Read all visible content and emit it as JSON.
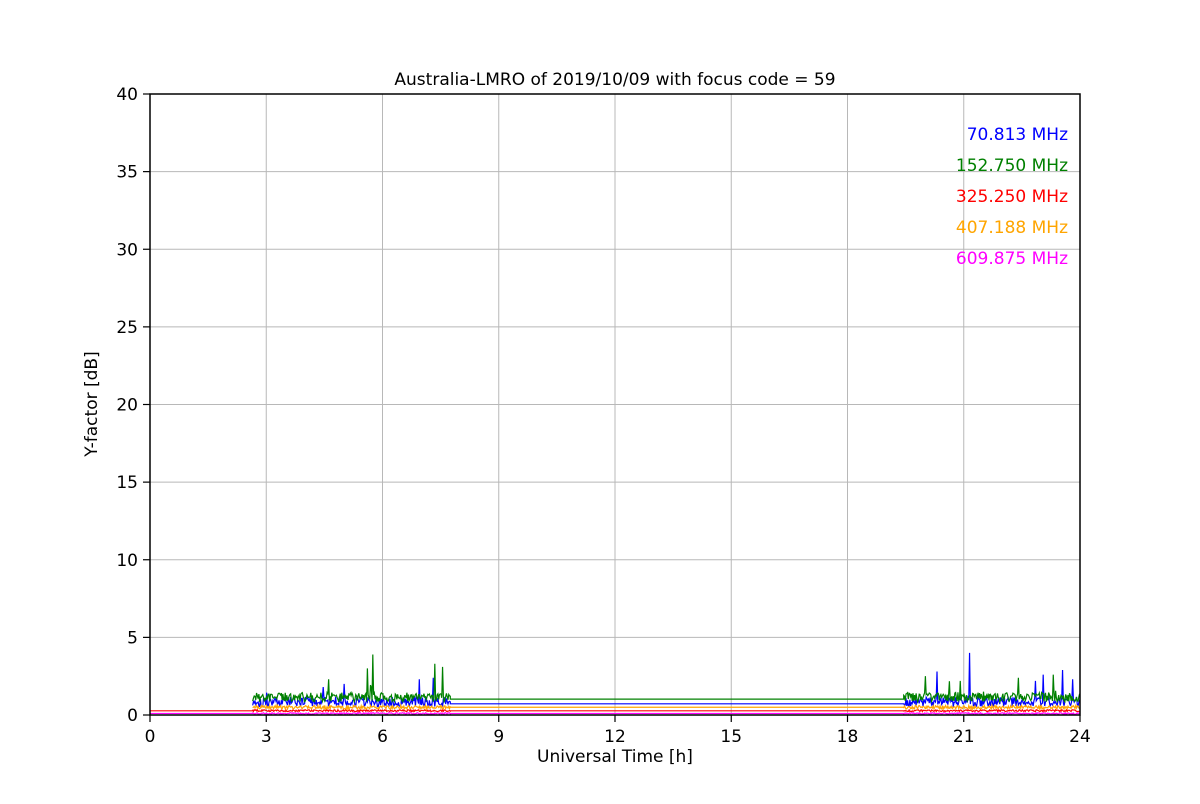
{
  "chart_data": {
    "type": "line",
    "title": "Australia-LMRO of 2019/10/09 with focus code = 59",
    "xlabel": "Universal Time [h]",
    "ylabel": "Y-factor [dB]",
    "xlim": [
      0,
      24
    ],
    "ylim": [
      0,
      40
    ],
    "xticks": [
      0,
      3,
      6,
      9,
      12,
      15,
      18,
      21,
      24
    ],
    "yticks": [
      0,
      5,
      10,
      15,
      20,
      25,
      30,
      35,
      40
    ],
    "grid": true,
    "grid_color": "#b8b8b8",
    "legend_position": "upper right",
    "legend": [
      "70.813 MHz",
      "152.750 MHz",
      "325.250 MHz",
      "407.188 MHz",
      "609.875 MHz"
    ],
    "series": [
      {
        "name": "70.813 MHz",
        "color": "#0000ff",
        "base": 0.85,
        "noise": 0.32,
        "spike_prob": 0.012,
        "spike_max": 0.9,
        "tall_spikes": [
          [
            5.0,
            2.0
          ],
          [
            6.95,
            2.3
          ],
          [
            7.3,
            2.4
          ],
          [
            20.3,
            2.8
          ],
          [
            21.15,
            4.0
          ],
          [
            22.85,
            2.2
          ],
          [
            23.05,
            2.6
          ],
          [
            23.55,
            2.9
          ],
          [
            23.8,
            2.3
          ]
        ],
        "segments": [
          [
            "noisy",
            2.65,
            7.75
          ],
          [
            "flat",
            7.75,
            19.45,
            0.72
          ],
          [
            "noisy",
            19.45,
            24
          ]
        ]
      },
      {
        "name": "152.750 MHz",
        "color": "#008000",
        "base": 1.15,
        "noise": 0.3,
        "spike_prob": 0.012,
        "spike_max": 0.9,
        "tall_spikes": [
          [
            4.6,
            2.3
          ],
          [
            5.6,
            3.0
          ],
          [
            5.75,
            3.9
          ],
          [
            7.35,
            3.3
          ],
          [
            7.55,
            3.1
          ],
          [
            20.0,
            2.5
          ],
          [
            20.9,
            2.2
          ],
          [
            22.4,
            2.4
          ],
          [
            23.3,
            2.6
          ]
        ],
        "segments": [
          [
            "noisy",
            2.65,
            7.75
          ],
          [
            "flat",
            7.75,
            19.45,
            1.02
          ],
          [
            "noisy",
            19.45,
            24
          ]
        ]
      },
      {
        "name": "325.250 MHz",
        "color": "#ff0000",
        "base": 0.28,
        "noise": 0.06,
        "spike_prob": 0,
        "spike_max": 0,
        "tall_spikes": [],
        "segments": [
          [
            "flat",
            0,
            2.65,
            0.27
          ],
          [
            "noisy",
            2.65,
            7.75
          ],
          [
            "flat",
            7.75,
            19.45,
            0.27
          ],
          [
            "noisy",
            19.45,
            24
          ]
        ]
      },
      {
        "name": "407.188 MHz",
        "color": "#ffa500",
        "base": 0.5,
        "noise": 0.12,
        "spike_prob": 0,
        "spike_max": 0,
        "tall_spikes": [],
        "segments": [
          [
            "noisy",
            2.65,
            7.75
          ],
          [
            "flat",
            7.75,
            19.45,
            0.5
          ],
          [
            "noisy",
            19.45,
            24
          ]
        ]
      },
      {
        "name": "609.875 MHz",
        "color": "#ff00ff",
        "base": 0.1,
        "noise": 0.05,
        "spike_prob": 0,
        "spike_max": 0,
        "tall_spikes": [],
        "segments": [
          [
            "flat",
            0,
            2.65,
            0.1
          ],
          [
            "noisy",
            2.65,
            7.75
          ],
          [
            "flat",
            7.75,
            19.45,
            0.1
          ],
          [
            "noisy",
            19.45,
            24
          ]
        ]
      }
    ]
  }
}
